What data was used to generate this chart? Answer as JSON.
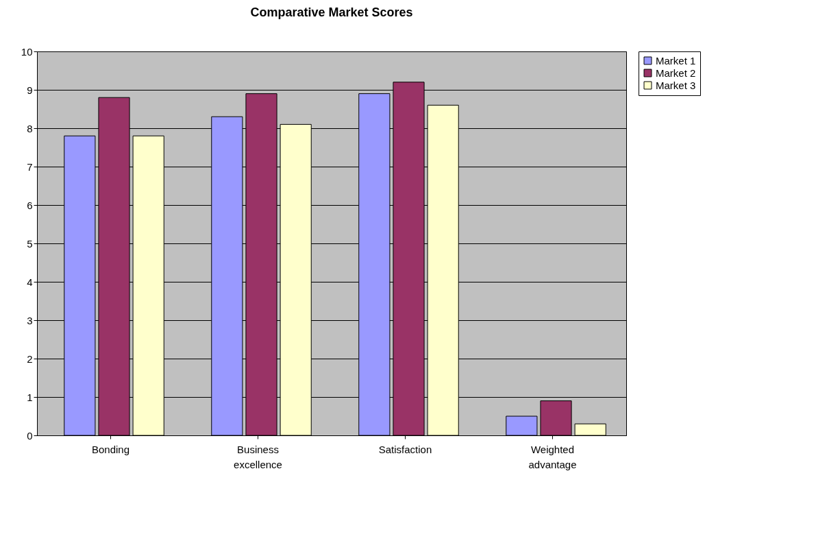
{
  "chart_data": {
    "type": "bar",
    "title": "Comparative Market Scores",
    "categories": [
      "Bonding",
      "Business excellence",
      "Satisfaction",
      "Weighted advantage"
    ],
    "series": [
      {
        "name": "Market 1",
        "color": "#9999ff",
        "values": [
          7.8,
          8.3,
          8.9,
          0.5
        ]
      },
      {
        "name": "Market 2",
        "color": "#993366",
        "values": [
          8.8,
          8.9,
          9.2,
          0.9
        ]
      },
      {
        "name": "Market 3",
        "color": "#ffffcc",
        "values": [
          7.8,
          8.1,
          8.6,
          0.3
        ]
      }
    ],
    "ylim": [
      0,
      10
    ],
    "yticks": [
      0,
      1,
      2,
      3,
      4,
      5,
      6,
      7,
      8,
      9,
      10
    ],
    "grid": "y",
    "legend": "right"
  }
}
